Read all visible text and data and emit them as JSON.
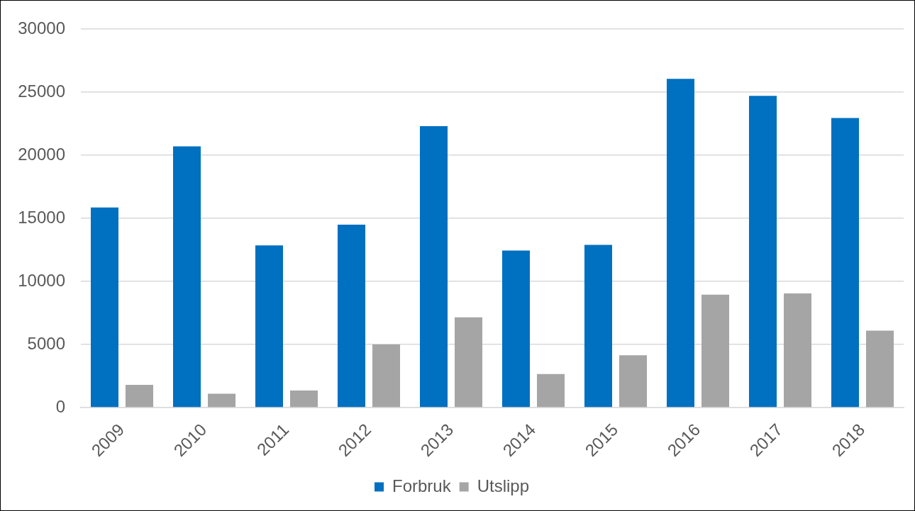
{
  "chart_data": {
    "type": "bar",
    "categories": [
      "2009",
      "2010",
      "2011",
      "2012",
      "2013",
      "2014",
      "2015",
      "2016",
      "2017",
      "2018"
    ],
    "series": [
      {
        "name": "Forbruk",
        "color": "#0070c0",
        "values": [
          15850,
          20700,
          12850,
          14500,
          22300,
          12450,
          12900,
          26050,
          24700,
          22950
        ]
      },
      {
        "name": "Utslipp",
        "color": "#a5a5a5",
        "values": [
          1800,
          1100,
          1350,
          5000,
          7150,
          2650,
          4150,
          8950,
          9050,
          6100
        ]
      }
    ],
    "ylim": [
      0,
      30000
    ],
    "yticks": [
      0,
      5000,
      10000,
      15000,
      20000,
      25000,
      30000
    ],
    "grid": "y",
    "legend": "bottom"
  }
}
